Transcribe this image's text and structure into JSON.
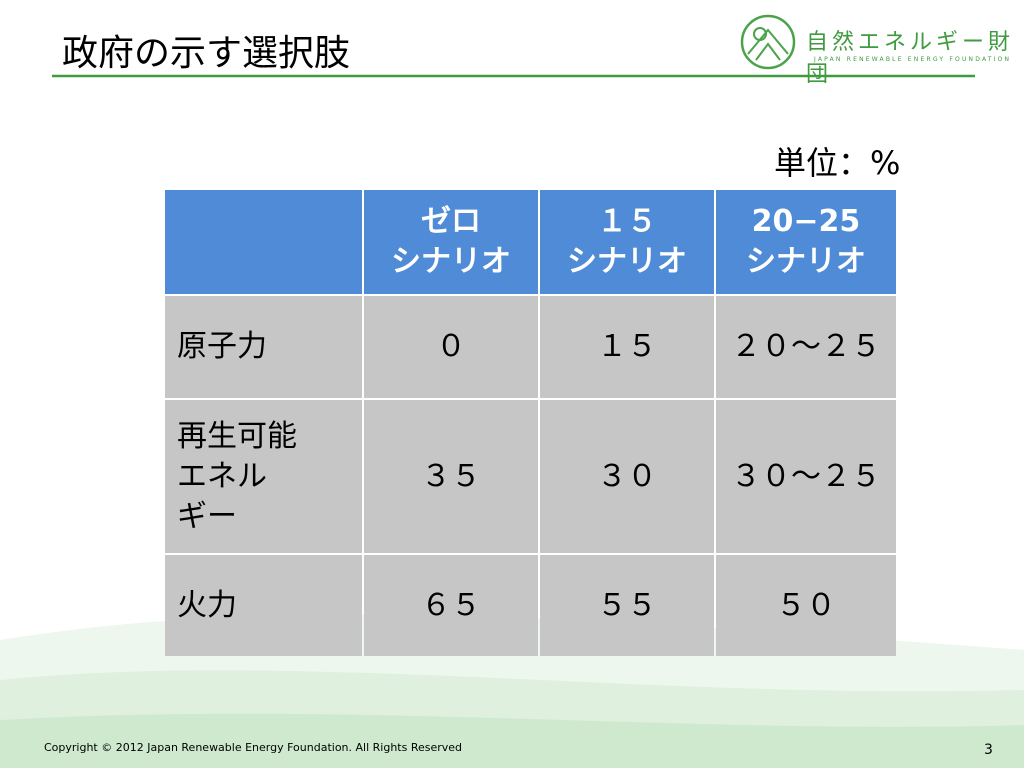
{
  "header": {
    "title": "政府の示す選択肢",
    "logo_name": "自然エネルギー財団",
    "logo_subtitle": "JAPAN RENEWABLE ENERGY FOUNDATION"
  },
  "unit": "単位：%",
  "table": {
    "columns": [
      [
        "ゼロ",
        "シナリオ"
      ],
      [
        "１５",
        "シナリオ"
      ],
      [
        "20−25",
        "シナリオ"
      ]
    ],
    "rows": [
      [
        [
          "原子力"
        ],
        [
          "０"
        ],
        [
          "１５"
        ],
        [
          "２０～２５"
        ]
      ],
      [
        [
          "再生可能",
          "エネル",
          "ギー"
        ],
        [
          "３５"
        ],
        [
          "３０"
        ],
        [
          "３０～２５"
        ]
      ],
      [
        [
          "火力"
        ],
        [
          "６５"
        ],
        [
          "５５"
        ],
        [
          "５０"
        ]
      ]
    ]
  },
  "footer": {
    "copyright": "Copyright © 2012 Japan Renewable Energy Foundation. All Rights Reserved",
    "page": "3"
  }
}
